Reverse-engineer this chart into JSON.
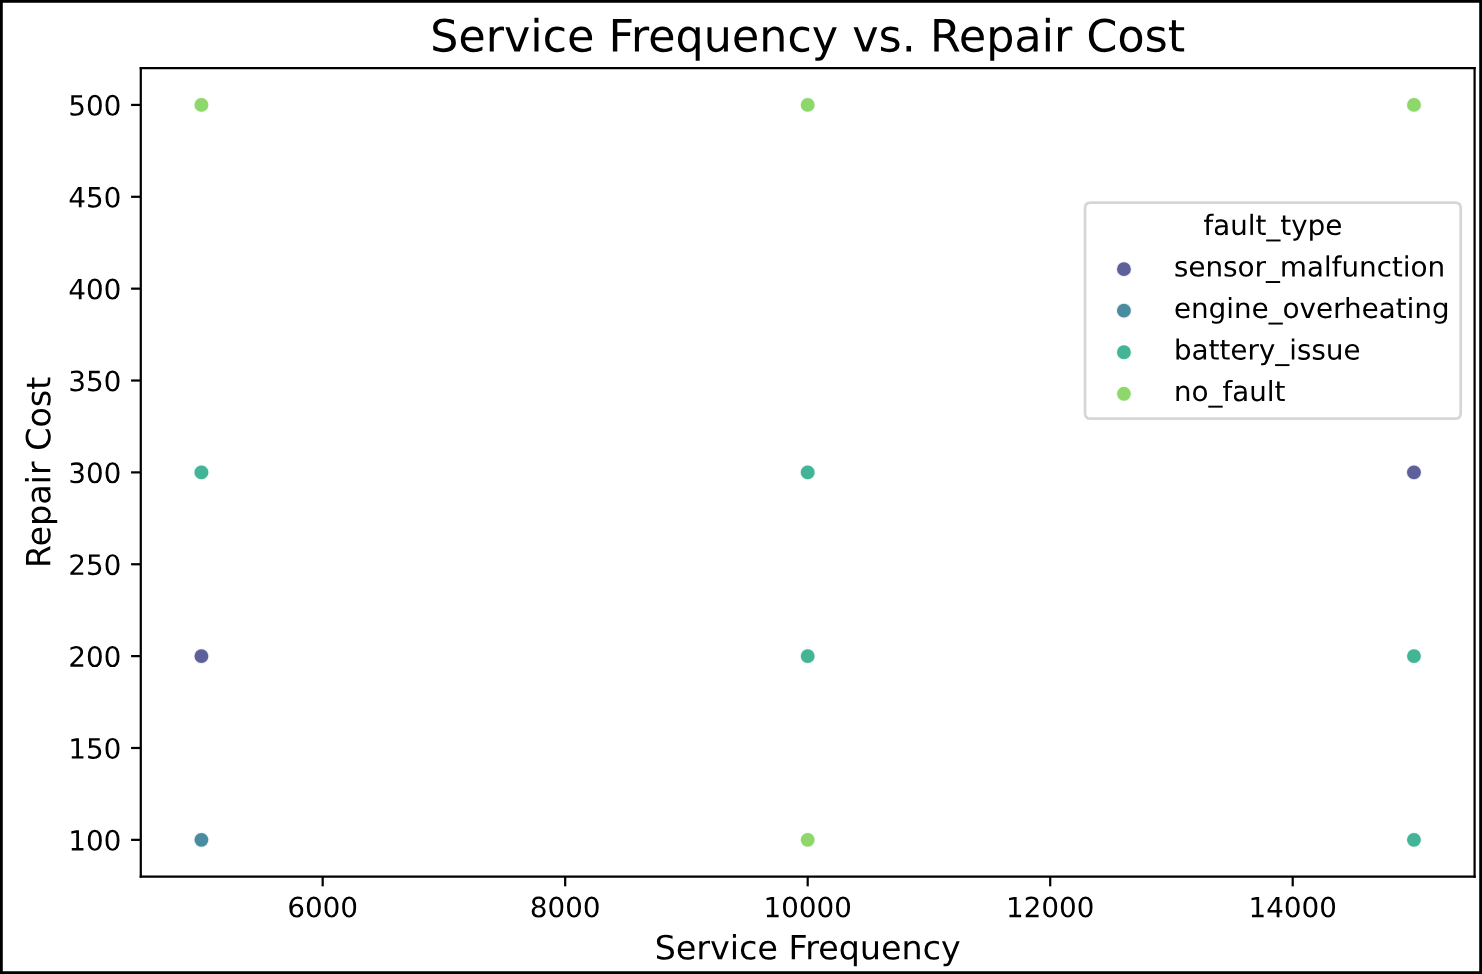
{
  "chart_data": {
    "type": "scatter",
    "title": "Service Frequency vs. Repair Cost",
    "xlabel": "Service Frequency",
    "ylabel": "Repair Cost",
    "legend_title": "fault_type",
    "legend": "right",
    "series": [
      {
        "name": "sensor_malfunction",
        "color": "#414487",
        "x": [
          5000,
          15000
        ],
        "values": [
          200,
          300
        ]
      },
      {
        "name": "engine_overheating",
        "color": "#2a788e",
        "x": [
          5000
        ],
        "values": [
          100
        ]
      },
      {
        "name": "battery_issue",
        "color": "#22a884",
        "x": [
          5000,
          10000,
          10000,
          15000,
          15000
        ],
        "values": [
          300,
          300,
          200,
          200,
          100
        ]
      },
      {
        "name": "no_fault",
        "color": "#7ad151",
        "x": [
          5000,
          10000,
          10000,
          15000
        ],
        "values": [
          500,
          500,
          100,
          500
        ]
      }
    ],
    "xlim": [
      4500,
      15500
    ],
    "xticks": [
      6000,
      8000,
      10000,
      12000,
      14000
    ],
    "ylim": [
      80,
      520
    ],
    "yticks": [
      100,
      150,
      200,
      250,
      300,
      350,
      400,
      450,
      500
    ],
    "marker": "circle",
    "grid": false
  }
}
